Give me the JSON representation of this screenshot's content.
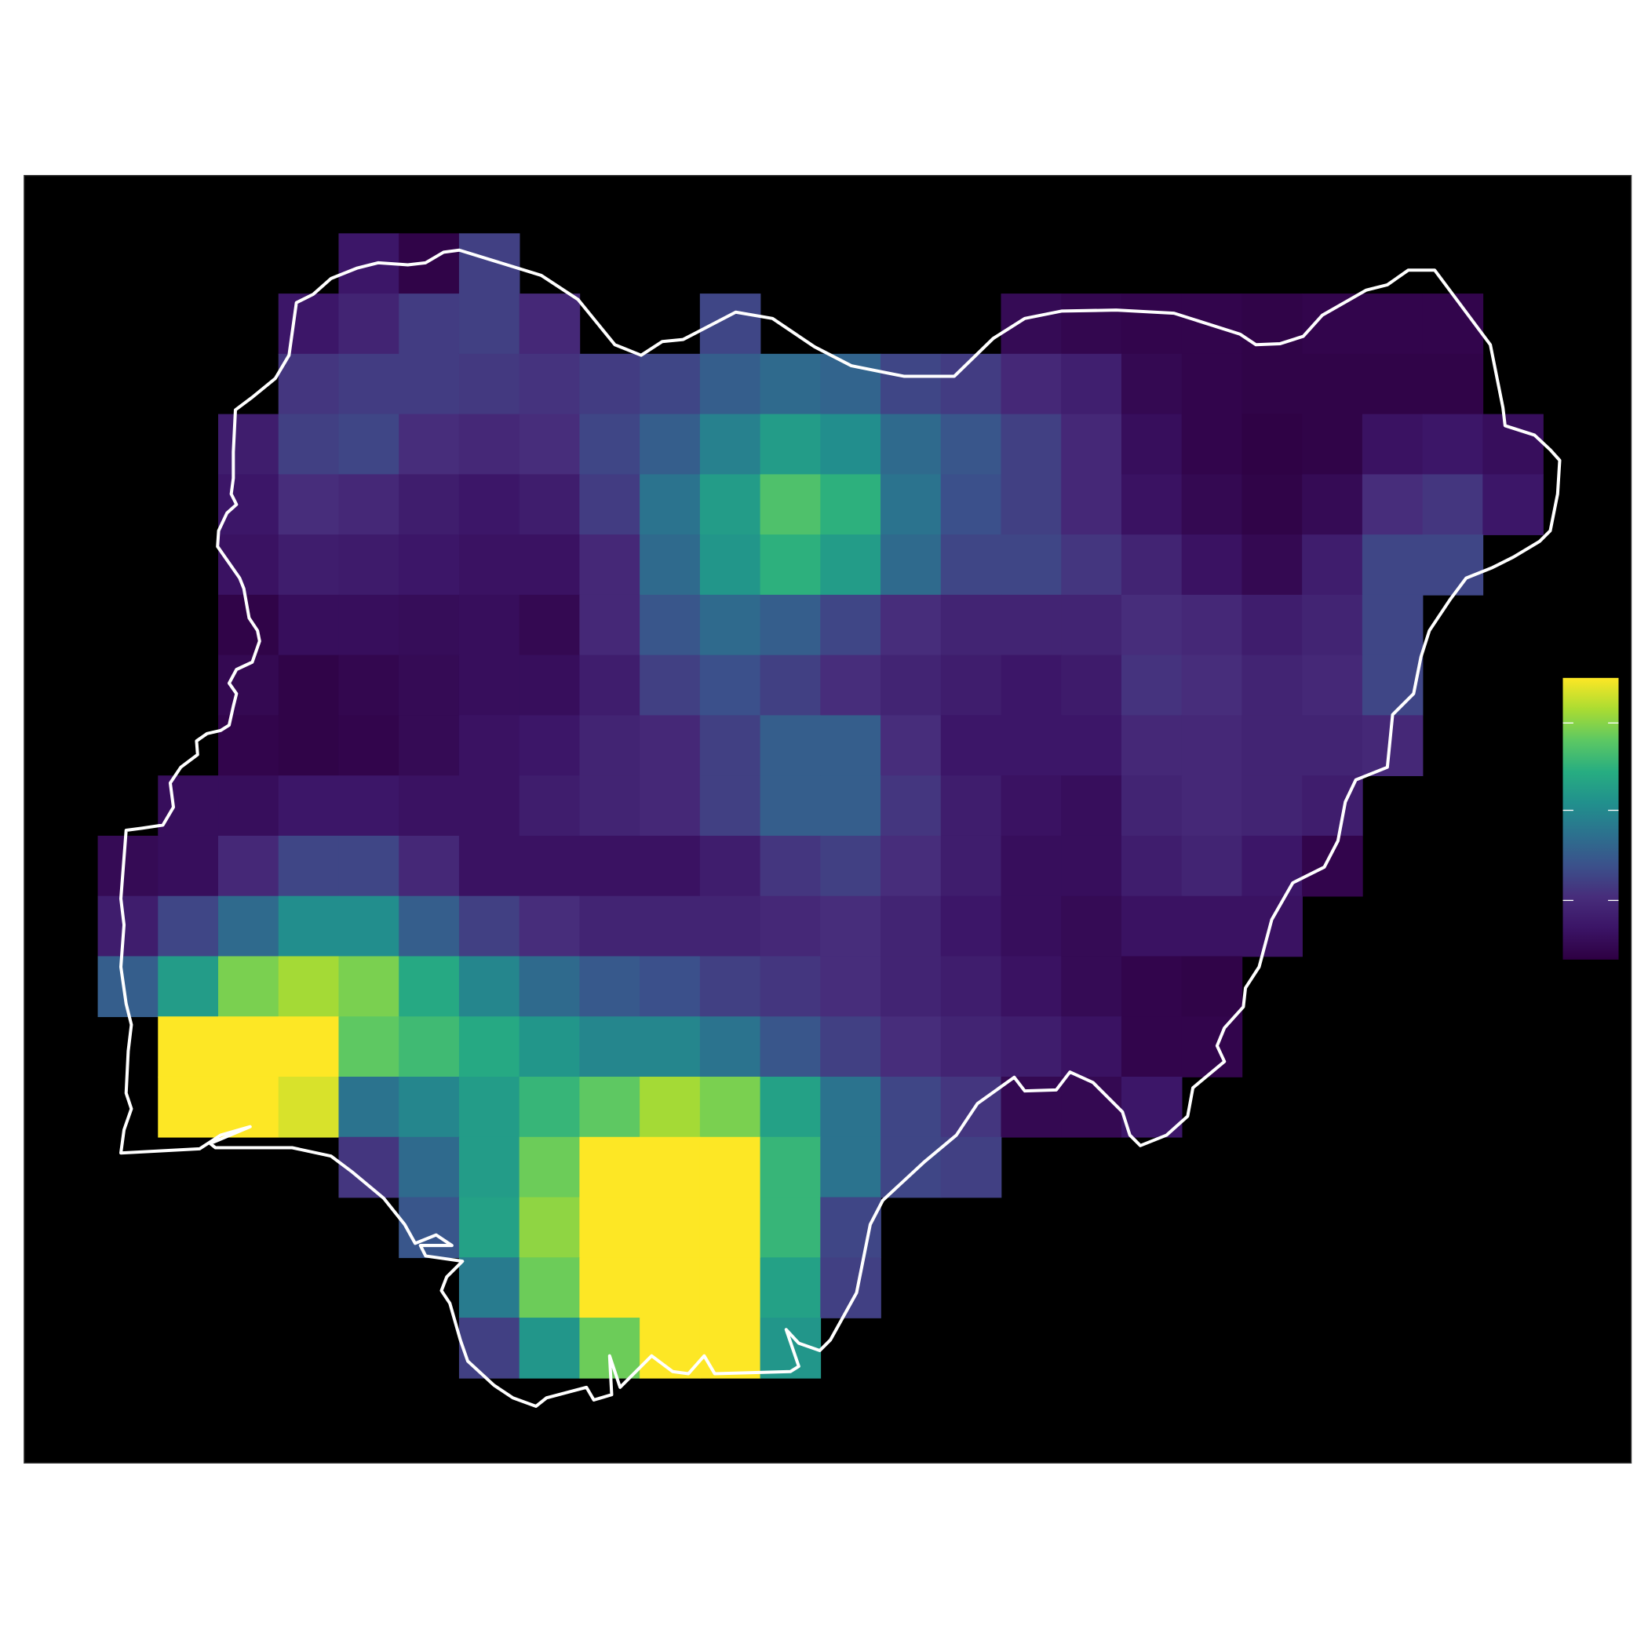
{
  "chart_data": {
    "type": "heatmap",
    "columns": 24,
    "rows": 19,
    "zlim": [
      0,
      1
    ],
    "colorbar_ticks": [
      0.21,
      0.53,
      0.84
    ],
    "colormap": [
      "#2e0042",
      "#3b1466",
      "#472d7b",
      "#3b518b",
      "#2c718e",
      "#21908d",
      "#27ad81",
      "#5cc863",
      "#aadc32",
      "#fde725"
    ],
    "background": "#000000",
    "outline_color": "#ffffff",
    "values": [
      [
        null,
        null,
        null,
        null,
        0.12,
        0.02,
        0.28,
        null,
        null,
        null,
        null,
        null,
        null,
        null,
        null,
        null,
        null,
        null,
        null,
        null,
        null,
        null,
        null,
        null
      ],
      [
        null,
        null,
        null,
        0.12,
        0.18,
        0.27,
        0.28,
        0.2,
        null,
        null,
        0.3,
        null,
        null,
        null,
        null,
        0.06,
        0.04,
        0.03,
        0.03,
        0.02,
        0.03,
        0.03,
        0.03,
        null
      ],
      [
        null,
        null,
        null,
        0.25,
        0.27,
        0.27,
        0.26,
        0.24,
        0.27,
        0.3,
        0.38,
        0.42,
        0.4,
        0.3,
        0.27,
        0.2,
        0.16,
        0.05,
        0.03,
        0.02,
        0.02,
        0.02,
        0.02,
        null
      ],
      [
        null,
        null,
        0.15,
        0.28,
        0.3,
        0.22,
        0.2,
        0.22,
        0.3,
        0.38,
        0.5,
        0.6,
        0.55,
        0.42,
        0.35,
        0.28,
        0.2,
        0.08,
        0.03,
        0.01,
        0.02,
        0.1,
        0.12,
        0.08
      ],
      [
        null,
        null,
        0.12,
        0.22,
        0.2,
        0.15,
        0.12,
        0.15,
        0.27,
        0.45,
        0.6,
        0.75,
        0.68,
        0.45,
        0.33,
        0.28,
        0.2,
        0.1,
        0.05,
        0.02,
        0.06,
        0.22,
        0.25,
        0.12
      ],
      [
        null,
        null,
        0.1,
        0.15,
        0.14,
        0.12,
        0.1,
        0.1,
        0.2,
        0.42,
        0.58,
        0.68,
        0.6,
        0.42,
        0.3,
        0.3,
        0.25,
        0.18,
        0.1,
        0.05,
        0.15,
        0.3,
        0.3,
        null
      ],
      [
        null,
        null,
        0.02,
        0.08,
        0.08,
        0.07,
        0.08,
        0.05,
        0.2,
        0.35,
        0.42,
        0.38,
        0.3,
        0.22,
        0.18,
        0.18,
        0.18,
        0.22,
        0.2,
        0.15,
        0.18,
        0.3,
        null,
        null
      ],
      [
        null,
        null,
        0.05,
        0.02,
        0.04,
        0.06,
        0.08,
        0.08,
        0.15,
        0.28,
        0.33,
        0.28,
        0.22,
        0.18,
        0.15,
        0.12,
        0.14,
        0.24,
        0.22,
        0.18,
        0.2,
        0.3,
        null,
        null
      ],
      [
        null,
        null,
        0.03,
        0.02,
        0.03,
        0.06,
        0.1,
        0.12,
        0.18,
        0.2,
        0.28,
        0.38,
        0.38,
        0.22,
        0.12,
        0.12,
        0.12,
        0.2,
        0.2,
        0.18,
        0.18,
        0.2,
        null,
        null
      ],
      [
        null,
        0.08,
        0.08,
        0.12,
        0.12,
        0.1,
        0.1,
        0.15,
        0.18,
        0.2,
        0.28,
        0.38,
        0.38,
        0.25,
        0.15,
        0.1,
        0.08,
        0.18,
        0.2,
        0.18,
        0.15,
        null,
        null,
        null
      ],
      [
        0.06,
        0.08,
        0.2,
        0.3,
        0.3,
        0.2,
        0.1,
        0.1,
        0.1,
        0.1,
        0.15,
        0.25,
        0.28,
        0.22,
        0.15,
        0.08,
        0.08,
        0.15,
        0.18,
        0.12,
        0.03,
        null,
        null,
        null
      ],
      [
        0.15,
        0.3,
        0.42,
        0.55,
        0.55,
        0.38,
        0.28,
        0.22,
        0.18,
        0.18,
        0.18,
        0.2,
        0.22,
        0.18,
        0.12,
        0.08,
        0.06,
        0.1,
        0.1,
        0.1,
        null,
        null,
        null,
        null
      ],
      [
        0.38,
        0.6,
        0.82,
        0.88,
        0.82,
        0.65,
        0.52,
        0.42,
        0.36,
        0.33,
        0.28,
        0.25,
        0.22,
        0.18,
        0.15,
        0.1,
        0.06,
        0.03,
        0.02,
        null,
        null,
        null,
        null,
        null
      ],
      [
        null,
        1.0,
        1.0,
        1.0,
        0.78,
        0.72,
        0.65,
        0.58,
        0.52,
        0.52,
        0.45,
        0.35,
        0.28,
        0.22,
        0.18,
        0.15,
        0.1,
        0.03,
        0.03,
        null,
        null,
        null,
        null,
        null
      ],
      [
        null,
        1.0,
        1.0,
        0.95,
        0.45,
        0.52,
        0.6,
        0.7,
        0.78,
        0.88,
        0.82,
        0.62,
        0.45,
        0.3,
        0.25,
        0.05,
        0.05,
        0.12,
        null,
        null,
        null,
        null,
        null,
        null
      ],
      [
        null,
        null,
        null,
        null,
        0.25,
        0.42,
        0.6,
        0.8,
        1.0,
        1.0,
        1.0,
        0.7,
        0.45,
        0.3,
        0.28,
        null,
        null,
        null,
        null,
        null,
        null,
        null,
        null,
        null
      ],
      [
        null,
        null,
        null,
        null,
        null,
        0.35,
        0.62,
        0.85,
        1.0,
        1.0,
        1.0,
        0.7,
        0.3,
        null,
        null,
        null,
        null,
        null,
        null,
        null,
        null,
        null,
        null,
        null
      ],
      [
        null,
        null,
        null,
        null,
        null,
        null,
        0.48,
        0.8,
        1.0,
        1.0,
        1.0,
        0.62,
        0.28,
        null,
        null,
        null,
        null,
        null,
        null,
        null,
        null,
        null,
        null,
        null
      ],
      [
        null,
        null,
        null,
        null,
        null,
        null,
        0.28,
        0.58,
        0.8,
        1.0,
        1.0,
        0.58,
        null,
        null,
        null,
        null,
        null,
        null,
        null,
        null,
        null,
        null,
        null,
        null
      ]
    ]
  }
}
